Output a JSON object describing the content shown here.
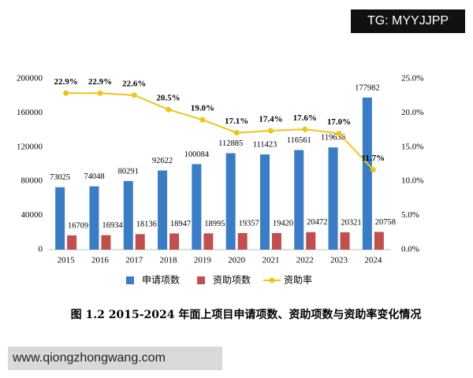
{
  "chart_data": {
    "type": "bar",
    "caption": "图 1.2 2015-2024 年面上项目申请项数、资助项数与资助率变化情况",
    "categories": [
      "2015",
      "2016",
      "2017",
      "2018",
      "2019",
      "2020",
      "2021",
      "2022",
      "2023",
      "2024"
    ],
    "series": [
      {
        "name": "申请项数",
        "type": "bar",
        "color": "#3a7dc4",
        "values": [
          73025,
          74048,
          80291,
          92622,
          100084,
          112885,
          111423,
          116561,
          119636,
          177982
        ]
      },
      {
        "name": "资助项数",
        "type": "bar",
        "color": "#c0504d",
        "values": [
          16709,
          16934,
          18136,
          18947,
          18995,
          19357,
          19420,
          20472,
          20321,
          20758
        ]
      },
      {
        "name": "资助率",
        "type": "line",
        "axis": "y2",
        "color": "#f0c419",
        "values": [
          22.9,
          22.9,
          22.6,
          20.5,
          19.0,
          17.1,
          17.4,
          17.6,
          17.0,
          11.7
        ],
        "value_labels": [
          "22.9%",
          "22.9%",
          "22.6%",
          "20.5%",
          "19.0%",
          "17.1%",
          "17.4%",
          "17.6%",
          "17.0%",
          "11.7%"
        ]
      }
    ],
    "ylim": [
      0,
      200000
    ],
    "yticks": [
      0,
      40000,
      80000,
      120000,
      160000,
      200000
    ],
    "y2lim": [
      0,
      25
    ],
    "y2ticks": [
      {
        "value": 0,
        "label": "0.0%"
      },
      {
        "value": 5,
        "label": "5.0%"
      },
      {
        "value": 10,
        "label": "10.0%"
      },
      {
        "value": 15,
        "label": "15.0%"
      },
      {
        "value": 20,
        "label": "20.0%"
      },
      {
        "value": 25,
        "label": "25.0%"
      }
    ],
    "grid": false,
    "legend": "bottom"
  },
  "overlays": {
    "tag": "TG: MYYJJPP",
    "site": "www.qiongzhongwang.com"
  }
}
